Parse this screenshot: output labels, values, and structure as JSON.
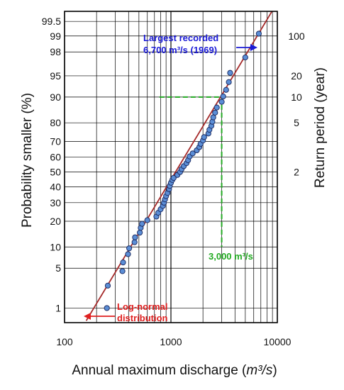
{
  "chart_data": {
    "type": "scatter",
    "x_scale": "log",
    "y_scale": "normal-probability",
    "xlim": [
      100,
      10000
    ],
    "ylim_percent": [
      0.5,
      99.7
    ],
    "grid": true,
    "xlabel_plain": "Annual maximum discharge (",
    "xlabel_italic": "m³/s",
    "xlabel_close": ")",
    "ylabel": "Probability smaller (%)",
    "y2label": "Return period (year)",
    "x_ticks": [
      {
        "value": 100,
        "label": "100"
      },
      {
        "value": 1000,
        "label": "1000"
      },
      {
        "value": 10000,
        "label": "10000"
      }
    ],
    "y_ticks": [
      {
        "p": 1,
        "label": "1"
      },
      {
        "p": 5,
        "label": "5"
      },
      {
        "p": 10,
        "label": "10"
      },
      {
        "p": 20,
        "label": "20"
      },
      {
        "p": 30,
        "label": "30"
      },
      {
        "p": 40,
        "label": "40"
      },
      {
        "p": 50,
        "label": "50"
      },
      {
        "p": 60,
        "label": "60"
      },
      {
        "p": 70,
        "label": "70"
      },
      {
        "p": 80,
        "label": "80"
      },
      {
        "p": 90,
        "label": "90"
      },
      {
        "p": 95,
        "label": "95"
      },
      {
        "p": 98,
        "label": "98"
      },
      {
        "p": 99,
        "label": "99"
      },
      {
        "p": 99.5,
        "label": "99.5"
      }
    ],
    "y2_ticks": [
      {
        "p": 50,
        "label": "2"
      },
      {
        "p": 80,
        "label": "5"
      },
      {
        "p": 90,
        "label": "10"
      },
      {
        "p": 95,
        "label": "20"
      },
      {
        "p": 99,
        "label": "100"
      }
    ],
    "points": [
      {
        "x": 250,
        "p": 1.0
      },
      {
        "x": 255,
        "p": 2.6
      },
      {
        "x": 350,
        "p": 4.5
      },
      {
        "x": 355,
        "p": 6.1
      },
      {
        "x": 395,
        "p": 8.0
      },
      {
        "x": 405,
        "p": 9.6
      },
      {
        "x": 455,
        "p": 11.5
      },
      {
        "x": 460,
        "p": 13.2
      },
      {
        "x": 510,
        "p": 15.0
      },
      {
        "x": 520,
        "p": 17.0
      },
      {
        "x": 535,
        "p": 18.8
      },
      {
        "x": 600,
        "p": 20.5
      },
      {
        "x": 730,
        "p": 22.3
      },
      {
        "x": 760,
        "p": 24.3
      },
      {
        "x": 800,
        "p": 26.2
      },
      {
        "x": 840,
        "p": 28.1
      },
      {
        "x": 860,
        "p": 30.0
      },
      {
        "x": 880,
        "p": 32.0
      },
      {
        "x": 900,
        "p": 34.0
      },
      {
        "x": 930,
        "p": 36.0
      },
      {
        "x": 960,
        "p": 38.5
      },
      {
        "x": 975,
        "p": 40.6
      },
      {
        "x": 1000,
        "p": 42.7
      },
      {
        "x": 1030,
        "p": 44.6
      },
      {
        "x": 1060,
        "p": 46.0
      },
      {
        "x": 1150,
        "p": 48.0
      },
      {
        "x": 1220,
        "p": 50.0
      },
      {
        "x": 1260,
        "p": 52.0
      },
      {
        "x": 1320,
        "p": 54.0
      },
      {
        "x": 1400,
        "p": 56.0
      },
      {
        "x": 1450,
        "p": 58.0
      },
      {
        "x": 1500,
        "p": 60.5
      },
      {
        "x": 1600,
        "p": 62.5
      },
      {
        "x": 1750,
        "p": 64.5
      },
      {
        "x": 1850,
        "p": 66.5
      },
      {
        "x": 1900,
        "p": 68.5
      },
      {
        "x": 2000,
        "p": 70.5
      },
      {
        "x": 2050,
        "p": 72.5
      },
      {
        "x": 2250,
        "p": 74.5
      },
      {
        "x": 2300,
        "p": 76.5
      },
      {
        "x": 2400,
        "p": 78.5
      },
      {
        "x": 2450,
        "p": 80.5
      },
      {
        "x": 2500,
        "p": 82.5
      },
      {
        "x": 2600,
        "p": 84.5
      },
      {
        "x": 2700,
        "p": 86.5
      },
      {
        "x": 3000,
        "p": 88.5
      },
      {
        "x": 3100,
        "p": 90.2
      },
      {
        "x": 3300,
        "p": 92.0
      },
      {
        "x": 3500,
        "p": 93.8
      },
      {
        "x": 3600,
        "p": 95.5
      },
      {
        "x": 5000,
        "p": 97.5
      },
      {
        "x": 6700,
        "p": 99.1
      }
    ],
    "fit_line": {
      "x": [
        160,
        8900
      ],
      "p": [
        0.55,
        99.7
      ]
    },
    "reference": {
      "x": 3000,
      "p": 90,
      "x_from": 780,
      "p_to": 10
    },
    "annotations": {
      "largest": [
        "Largest recorded",
        "6,700 m³/s (1969)"
      ],
      "threshold": "3,000 m³/s",
      "lognormal": [
        "Log-normal",
        "distribution"
      ]
    },
    "colors": {
      "point_fill": "#5b8ed6",
      "point_stroke": "#1f2f66",
      "fit_line": "#a52a2a",
      "reference": "#22aa22",
      "largest_text": "#1a1ad6",
      "threshold_text": "#22aa22",
      "lognormal_text": "#e02020",
      "grid": "#000000"
    }
  }
}
